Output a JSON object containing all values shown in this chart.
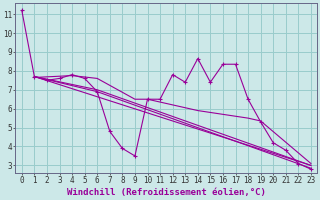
{
  "background_color": "#cce8e8",
  "grid_color": "#99cccc",
  "line_color": "#990099",
  "xlabel": "Windchill (Refroidissement éolien,°C)",
  "xlabel_fontsize": 6.5,
  "tick_fontsize": 5.5,
  "xlim": [
    -0.5,
    23.5
  ],
  "ylim": [
    2.6,
    11.6
  ],
  "yticks": [
    3,
    4,
    5,
    6,
    7,
    8,
    9,
    10,
    11
  ],
  "xticks": [
    0,
    1,
    2,
    3,
    4,
    5,
    6,
    7,
    8,
    9,
    10,
    11,
    12,
    13,
    14,
    15,
    16,
    17,
    18,
    19,
    20,
    21,
    22,
    23
  ],
  "series_main": [
    11.2,
    7.7,
    7.5,
    7.6,
    7.8,
    7.6,
    6.9,
    4.8,
    3.9,
    3.5,
    6.5,
    6.5,
    7.8,
    7.4,
    8.65,
    7.4,
    8.35,
    8.35,
    6.5,
    5.3,
    4.2,
    3.8,
    3.1,
    2.8
  ],
  "series_line1": [
    [
      1,
      7.7
    ],
    [
      6,
      7.0
    ],
    [
      23,
      3.0
    ]
  ],
  "series_line2": [
    [
      1,
      7.7
    ],
    [
      6,
      6.9
    ],
    [
      23,
      2.85
    ]
  ],
  "series_line3": [
    [
      1,
      7.65
    ],
    [
      4,
      7.75
    ],
    [
      6,
      7.6
    ],
    [
      9,
      6.5
    ],
    [
      10,
      6.5
    ],
    [
      14,
      5.9
    ],
    [
      18,
      5.5
    ],
    [
      19,
      5.35
    ],
    [
      23,
      3.1
    ]
  ],
  "series_line4": [
    [
      1,
      7.7
    ],
    [
      23,
      3.0
    ]
  ]
}
